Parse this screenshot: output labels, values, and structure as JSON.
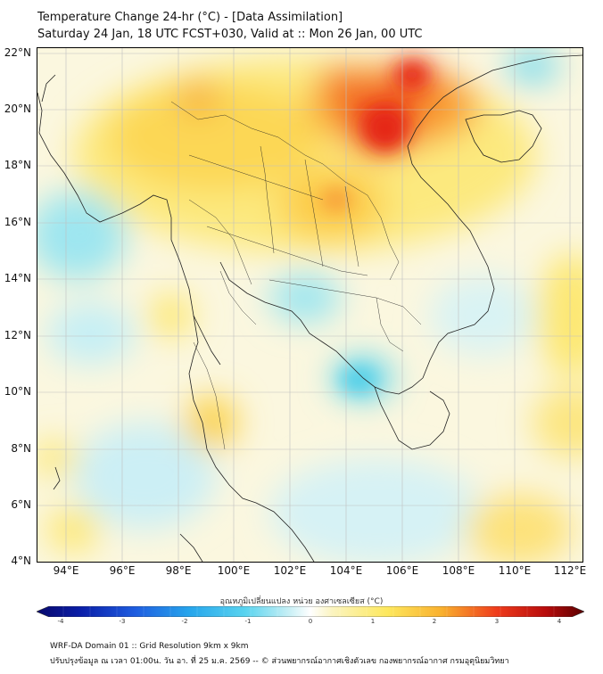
{
  "header": {
    "title": "Temperature Change 24-hr (°C) - [Data Assimilation]",
    "subtitle": "Saturday 24 Jan, 18 UTC FCST+030, Valid at :: Mon 26 Jan, 00 UTC"
  },
  "map": {
    "lat_labels": [
      "22°N",
      "20°N",
      "18°N",
      "16°N",
      "14°N",
      "12°N",
      "10°N",
      "8°N",
      "6°N",
      "4°N"
    ],
    "lon_labels": [
      "94°E",
      "96°E",
      "98°E",
      "100°E",
      "102°E",
      "104°E",
      "106°E",
      "108°E",
      "110°E",
      "112°E"
    ],
    "extent": {
      "lon_min": 93.0,
      "lon_max": 112.5,
      "lat_min": 4.0,
      "lat_max": 22.2
    }
  },
  "colorbar": {
    "label": "อุณหภูมิเปลี่ยนแปลง หน่วย องศาเซลเซียส (°C)",
    "ticks": [
      "-4",
      "-3",
      "-2",
      "-1",
      "0",
      "1",
      "2",
      "3",
      "4"
    ],
    "min": -4,
    "max": 4
  },
  "footer": {
    "line1": "WRF-DA Domain 01 :: Grid Resolution 9km x 9km",
    "line2": "ปรับปรุงข้อมูล ณ เวลา 01:00น. วัน อา. ที่ 25 ม.ค. 2569 -- © ส่วนพยากรณ์อากาศเชิงตัวเลข กองพยากรณ์อากาศ กรมอุตุนิยมวิทยา"
  }
}
